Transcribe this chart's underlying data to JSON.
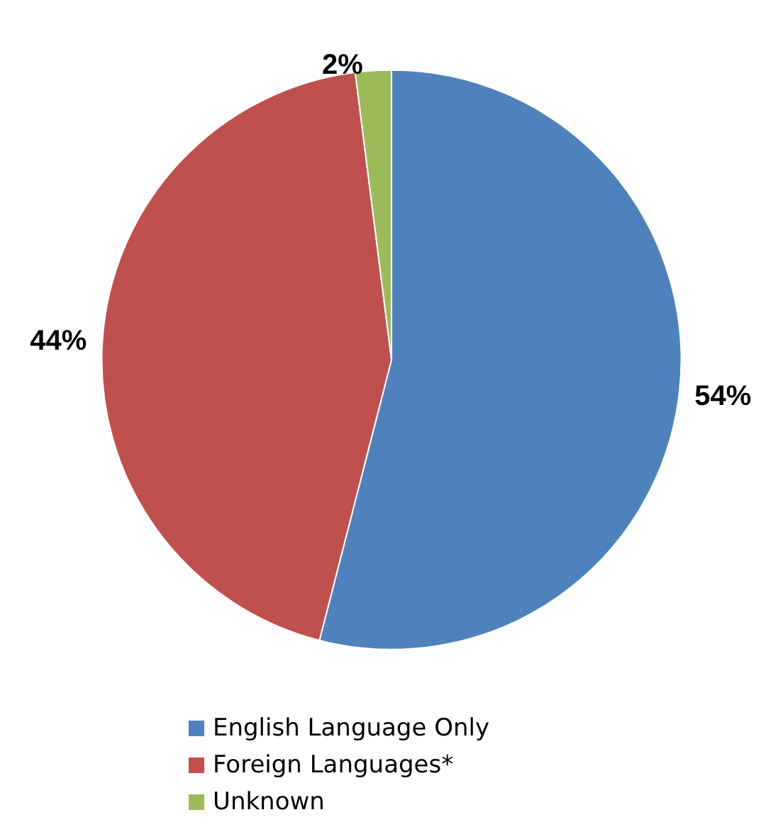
{
  "chart_data": {
    "type": "pie",
    "categories": [
      "English Language Only",
      "Foreign Languages*",
      "Unknown"
    ],
    "values": [
      54,
      44,
      2
    ],
    "colors": [
      "#4f81bd",
      "#c0504d",
      "#9bbb59"
    ],
    "value_labels": [
      "54%",
      "44%",
      "2%"
    ],
    "legend": "bottom"
  }
}
